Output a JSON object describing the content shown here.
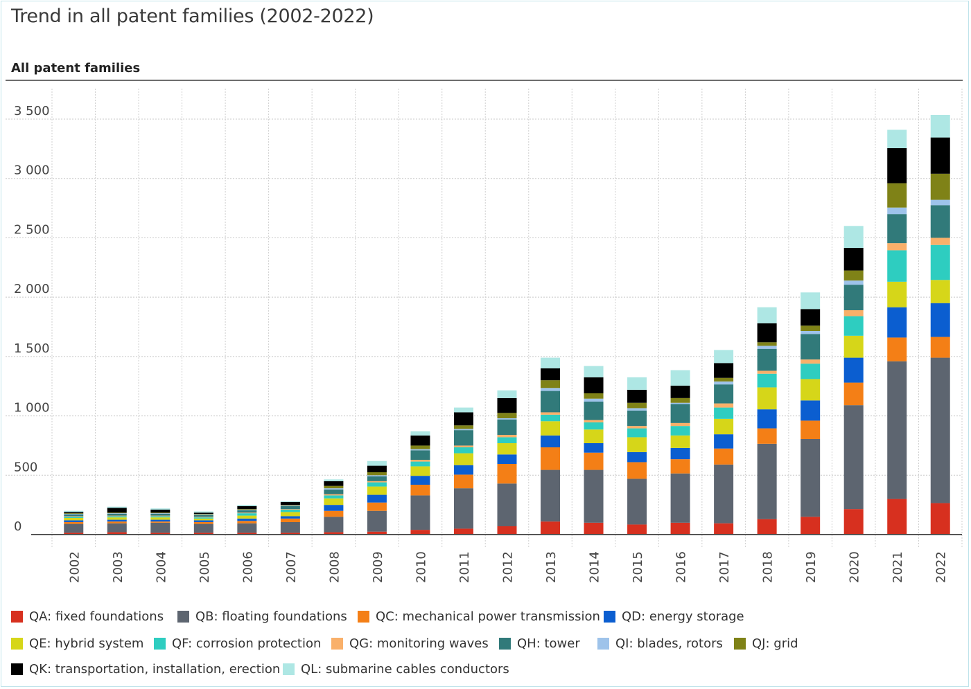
{
  "page": {
    "title": "Trend in all patent families (2002-2022)",
    "subtitle": "All patent families"
  },
  "chart_data": {
    "type": "bar",
    "stacked": true,
    "title": "Trend in all patent families (2002-2022)",
    "subtitle": "All patent families",
    "categories": [
      "2002",
      "2003",
      "2004",
      "2005",
      "2006",
      "2007",
      "2008",
      "2009",
      "2010",
      "2011",
      "2012",
      "2013",
      "2014",
      "2015",
      "2016",
      "2017",
      "2018",
      "2019",
      "2020",
      "2021",
      "2022"
    ],
    "ylim": [
      0,
      3500
    ],
    "yticks": [
      0,
      500,
      1000,
      1500,
      2000,
      2500,
      3000,
      3500
    ],
    "ytick_labels": [
      "0",
      "500",
      "1 000",
      "1 500",
      "2 000",
      "2 500",
      "3 000",
      "3 500"
    ],
    "grid": true,
    "legend_position": "bottom",
    "series": [
      {
        "name": "QA: fixed foundations",
        "color": "#d7301f",
        "values": [
          15,
          20,
          15,
          15,
          15,
          15,
          20,
          25,
          40,
          50,
          70,
          110,
          100,
          85,
          100,
          95,
          130,
          150,
          215,
          300,
          265
        ]
      },
      {
        "name": "QB: floating foundations",
        "color": "#5d6570",
        "values": [
          75,
          75,
          85,
          75,
          80,
          90,
          130,
          175,
          290,
          340,
          360,
          435,
          445,
          385,
          415,
          495,
          635,
          655,
          875,
          1160,
          1225
        ]
      },
      {
        "name": "QC: mechanical power transmission",
        "color": "#f47f16",
        "values": [
          15,
          15,
          10,
          15,
          20,
          30,
          50,
          70,
          90,
          115,
          165,
          190,
          145,
          140,
          120,
          135,
          130,
          155,
          190,
          200,
          175
        ]
      },
      {
        "name": "QD: energy storage",
        "color": "#0b5ed0",
        "values": [
          15,
          15,
          15,
          15,
          20,
          20,
          50,
          65,
          75,
          80,
          80,
          100,
          80,
          85,
          95,
          120,
          160,
          170,
          210,
          255,
          285
        ]
      },
      {
        "name": "QE: hybrid system",
        "color": "#d6d619",
        "values": [
          20,
          20,
          20,
          15,
          25,
          35,
          55,
          70,
          80,
          100,
          95,
          120,
          115,
          125,
          105,
          130,
          185,
          180,
          185,
          215,
          195
        ]
      },
      {
        "name": "QF: corrosion protection",
        "color": "#2ecdc0",
        "values": [
          10,
          10,
          10,
          10,
          20,
          20,
          25,
          35,
          40,
          50,
          50,
          55,
          60,
          75,
          80,
          95,
          115,
          130,
          165,
          265,
          295
        ]
      },
      {
        "name": "QG: monitoring waves",
        "color": "#f9b06a",
        "values": [
          5,
          5,
          5,
          5,
          5,
          5,
          10,
          10,
          15,
          15,
          20,
          20,
          20,
          20,
          25,
          35,
          25,
          35,
          50,
          60,
          60
        ]
      },
      {
        "name": "QH: tower",
        "color": "#317a7a",
        "values": [
          15,
          15,
          15,
          15,
          20,
          25,
          40,
          40,
          80,
          130,
          130,
          180,
          155,
          130,
          160,
          160,
          185,
          215,
          215,
          245,
          275
        ]
      },
      {
        "name": "QI: blades, rotors",
        "color": "#9ec3ea",
        "values": [
          5,
          5,
          5,
          5,
          5,
          5,
          10,
          10,
          10,
          10,
          10,
          25,
          25,
          20,
          10,
          25,
          25,
          25,
          35,
          55,
          45
        ]
      },
      {
        "name": "QJ: grid",
        "color": "#7f8217",
        "values": [
          5,
          5,
          5,
          5,
          5,
          5,
          20,
          25,
          30,
          30,
          45,
          65,
          45,
          45,
          40,
          30,
          30,
          45,
          85,
          205,
          220
        ]
      },
      {
        "name": "QK: transportation, installation, erection",
        "color": "#000000",
        "values": [
          10,
          40,
          25,
          10,
          25,
          25,
          40,
          55,
          85,
          110,
          125,
          100,
          135,
          110,
          105,
          125,
          160,
          140,
          190,
          295,
          305
        ]
      },
      {
        "name": "QL: submarine cables conductors",
        "color": "#aee7e4",
        "values": [
          10,
          10,
          10,
          10,
          10,
          5,
          15,
          40,
          35,
          40,
          65,
          90,
          95,
          105,
          130,
          110,
          135,
          140,
          185,
          155,
          190
        ]
      }
    ]
  },
  "legend": {
    "rows": [
      [
        0,
        1,
        2,
        3
      ],
      [
        4,
        5,
        6,
        7,
        8,
        9
      ],
      [
        10,
        11
      ]
    ]
  }
}
